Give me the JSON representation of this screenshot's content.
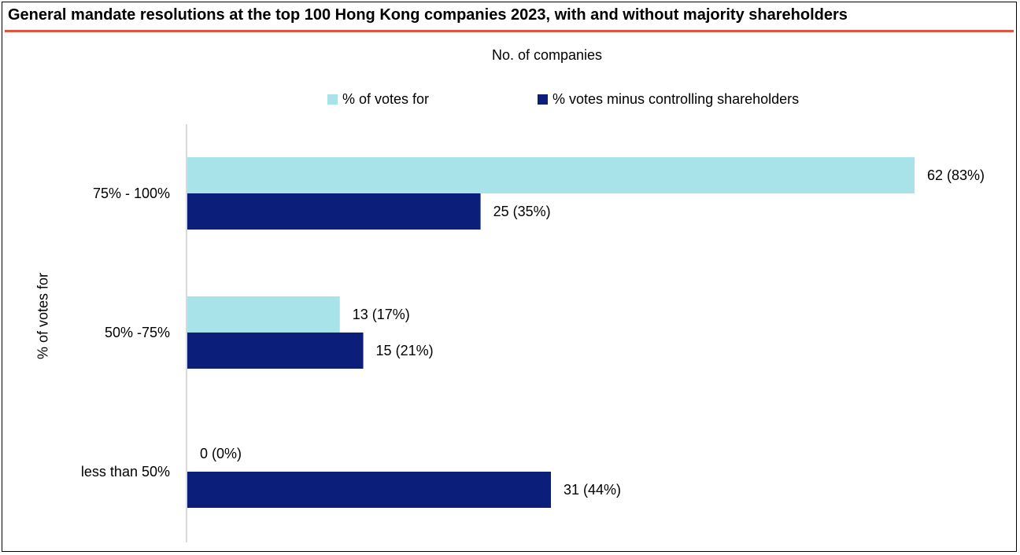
{
  "title": "General mandate resolutions at the top 100 Hong Kong companies 2023, with and without majority shareholders",
  "colors": {
    "accent_rule": "#e0553f",
    "series1": "#a8e3ea",
    "series2": "#0b1f7a",
    "axis": "#d9d9d9"
  },
  "chart_data": {
    "type": "bar",
    "orientation": "horizontal",
    "title": "No. of companies",
    "ylabel": "% of votes for",
    "xlabel": "",
    "categories": [
      "75% - 100%",
      "50% -75%",
      "less than 50%"
    ],
    "series": [
      {
        "name": "% of votes for",
        "values": [
          62,
          13,
          0
        ],
        "labels": [
          "62 (83%)",
          "13 (17%)",
          "0 (0%)"
        ]
      },
      {
        "name": "% votes minus controlling shareholders",
        "values": [
          25,
          15,
          31
        ],
        "labels": [
          "25 (35%)",
          "15 (21%)",
          "31 (44%)"
        ]
      }
    ],
    "xlim": [
      0,
      62
    ],
    "grid": false,
    "legend_position": "top"
  }
}
